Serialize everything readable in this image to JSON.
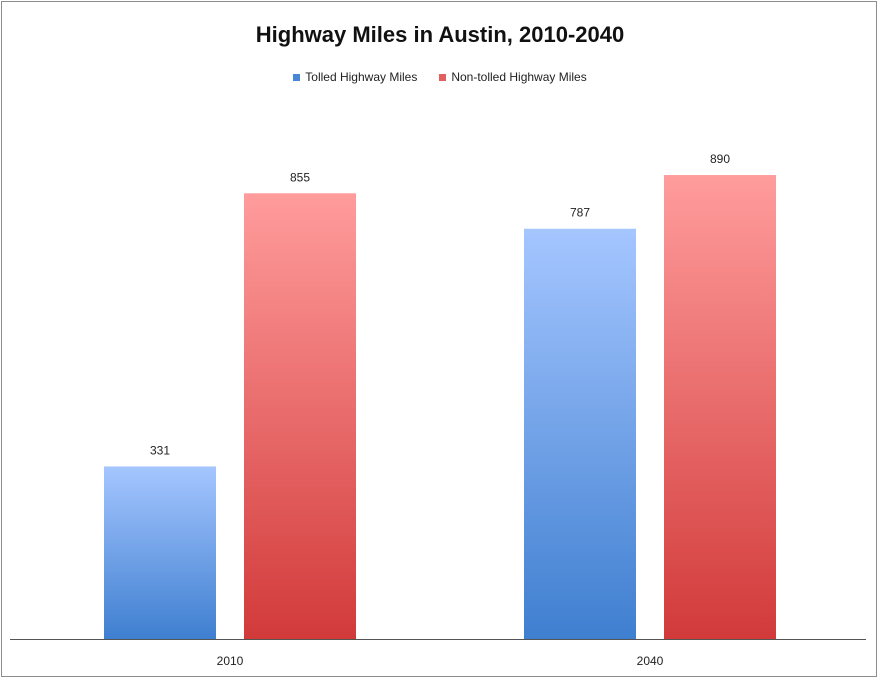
{
  "chart_data": {
    "type": "bar",
    "title": "Highway Miles in Austin, 2010-2040",
    "xlabel": "",
    "ylabel": "",
    "categories": [
      "2010",
      "2040"
    ],
    "series": [
      {
        "name": "Tolled Highway Miles",
        "values": [
          331,
          787
        ],
        "color_top": "#a5c6ff",
        "color_bottom": "#3f7fd0"
      },
      {
        "name": "Non-tolled Highway Miles",
        "values": [
          855,
          890
        ],
        "color_top": "#ff9c9c",
        "color_bottom": "#d23a3a"
      }
    ],
    "ylim": [
      0,
      1000
    ],
    "grid": false,
    "legend": "top-center",
    "colors": {
      "legend_tolled": "#4a86d6",
      "legend_non_tolled": "#e06060",
      "axis": "#555555"
    }
  }
}
